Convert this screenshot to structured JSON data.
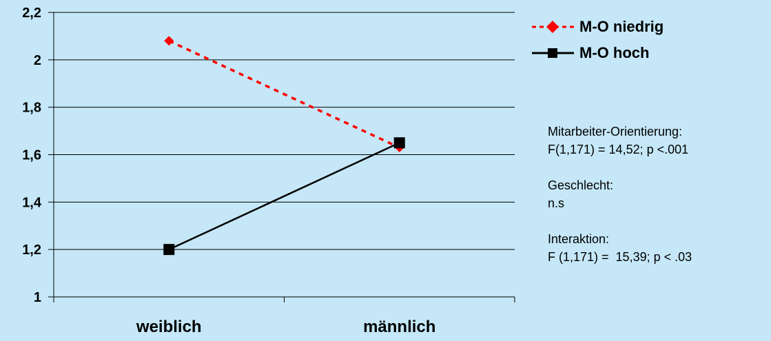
{
  "chart_data": {
    "type": "line",
    "categories": [
      "weiblich",
      "männlich"
    ],
    "series": [
      {
        "name": "M-O niedrig",
        "values": [
          2.08,
          1.63
        ],
        "color": "#ff0000",
        "style": "dashed",
        "marker": "diamond"
      },
      {
        "name": "M-O hoch",
        "values": [
          1.2,
          1.65
        ],
        "color": "#000000",
        "style": "solid",
        "marker": "square"
      }
    ],
    "ylim": [
      1,
      2.2
    ],
    "yticks": [
      "1",
      "1,2",
      "1,4",
      "1,6",
      "1,8",
      "2",
      "2,2"
    ],
    "grid": true,
    "legend_position": "top-right"
  },
  "annotations": [
    {
      "lines": [
        "Mitarbeiter-Orientierung:",
        "F(1,171) = 14,52; p <.001"
      ]
    },
    {
      "lines": [
        "Geschlecht:",
        "n.s"
      ]
    },
    {
      "lines": [
        "Interaktion:",
        "F (1,171) =  15,39; p < .03"
      ]
    }
  ]
}
